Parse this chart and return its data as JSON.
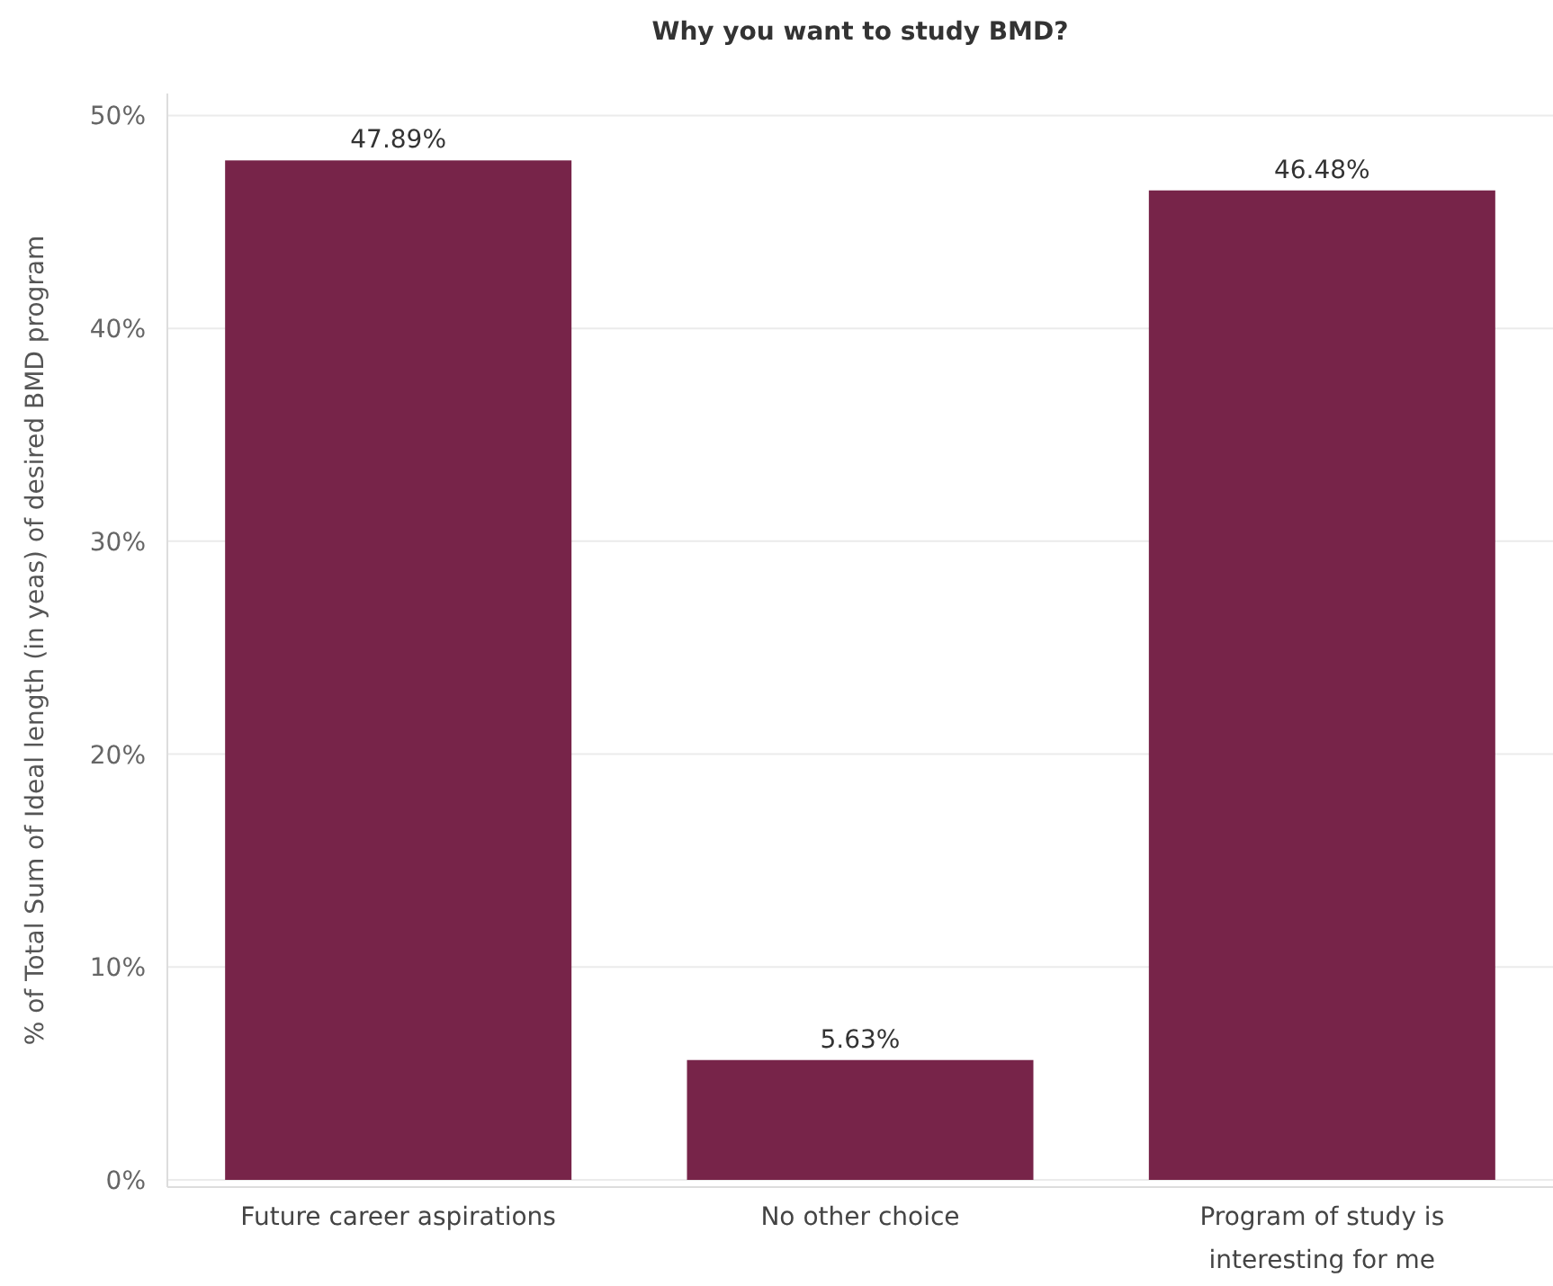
{
  "chart_data": {
    "type": "bar",
    "title": "Why you want to study BMD?",
    "ylabel": "% of Total Sum of Ideal length (in yeas) of desired BMD program",
    "categories": [
      "Future career aspirations",
      "No other choice",
      "Program of study is interesting for me"
    ],
    "values": [
      47.89,
      5.63,
      46.48
    ],
    "value_labels": [
      "47.89%",
      "5.63%",
      "46.48%"
    ],
    "color": "#772449",
    "ylim": [
      0,
      51.2
    ],
    "yticks": [
      {
        "value": 0,
        "label": "0%"
      },
      {
        "value": 10,
        "label": "10%"
      },
      {
        "value": 20,
        "label": "20%"
      },
      {
        "value": 30,
        "label": "30%"
      },
      {
        "value": 40,
        "label": "40%"
      },
      {
        "value": 50,
        "label": "50%"
      }
    ],
    "grid": "y"
  }
}
